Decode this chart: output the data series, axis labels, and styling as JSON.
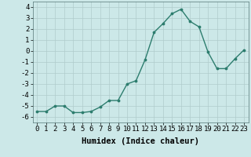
{
  "x": [
    0,
    1,
    2,
    3,
    4,
    5,
    6,
    7,
    8,
    9,
    10,
    11,
    12,
    13,
    14,
    15,
    16,
    17,
    18,
    19,
    20,
    21,
    22,
    23
  ],
  "y": [
    -5.5,
    -5.5,
    -5.0,
    -5.0,
    -5.6,
    -5.6,
    -5.5,
    -5.1,
    -4.5,
    -4.5,
    -3.0,
    -2.7,
    -0.8,
    1.7,
    2.5,
    3.4,
    3.8,
    2.7,
    2.2,
    -0.1,
    -1.6,
    -1.6,
    -0.7,
    0.1
  ],
  "line_color": "#2d7d6e",
  "marker": ".",
  "marker_color": "#2d7d6e",
  "bg_color": "#cce8e8",
  "grid_color": "#b0cccc",
  "xlabel": "Humidex (Indice chaleur)",
  "xlim": [
    -0.5,
    23.5
  ],
  "ylim": [
    -6.5,
    4.5
  ],
  "yticks": [
    -6,
    -5,
    -4,
    -3,
    -2,
    -1,
    0,
    1,
    2,
    3,
    4
  ],
  "xtick_labels": [
    "0",
    "1",
    "2",
    "3",
    "4",
    "5",
    "6",
    "7",
    "8",
    "9",
    "10",
    "11",
    "12",
    "13",
    "14",
    "15",
    "16",
    "17",
    "18",
    "19",
    "20",
    "21",
    "22",
    "23"
  ],
  "xlabel_fontsize": 7.5,
  "tick_fontsize": 6.5,
  "line_width": 1.0,
  "marker_size": 3.5
}
